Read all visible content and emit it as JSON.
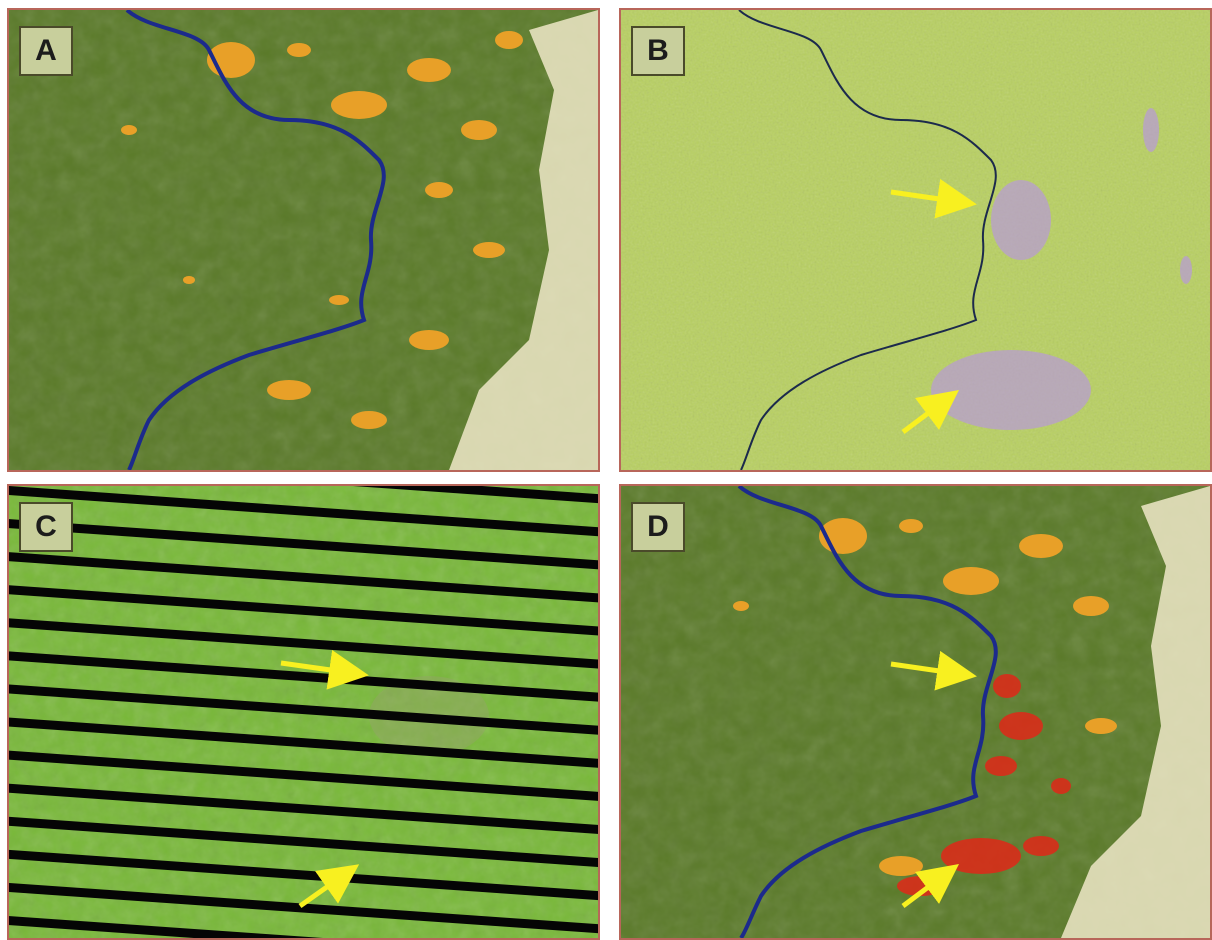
{
  "panels": [
    {
      "id": "a",
      "label": "A",
      "kind": "classified-map",
      "has_arrows": false
    },
    {
      "id": "b",
      "label": "B",
      "kind": "radar-image",
      "has_arrows": true
    },
    {
      "id": "c",
      "label": "C",
      "kind": "striped-optical-image",
      "has_arrows": true
    },
    {
      "id": "d",
      "label": "D",
      "kind": "classified-map-with-detection",
      "has_arrows": true
    }
  ],
  "colors": {
    "forest": "#5a7a28",
    "agriculture": "#e8a028",
    "pasture": "#f0ecd0",
    "river": "#1c2a8c",
    "radar_green": "#b8d060",
    "disturbance_purple": "#b89ad8",
    "optical_green": "#78b838",
    "stripe": "#050505",
    "detection_red": "#e02818",
    "arrow_yellow": "#f8f020"
  }
}
